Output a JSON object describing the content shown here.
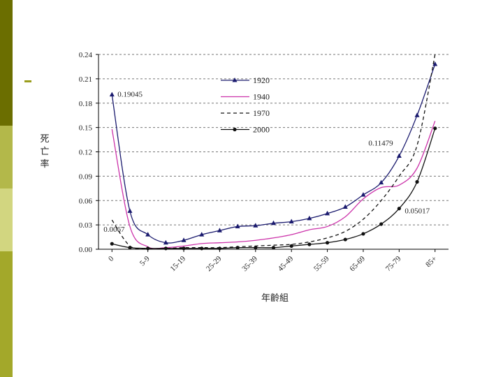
{
  "slide": {
    "sidebar_colors": [
      "#6b6e00",
      "#b3b84a",
      "#d2d680",
      "#a3a82a"
    ],
    "dash_color": "#9a9d1c"
  },
  "chart_data": {
    "type": "line",
    "ylabel": "死亡率",
    "xlabel": "年齡組",
    "ylim": [
      0,
      0.24
    ],
    "yticks": [
      "0.00",
      "0.03",
      "0.06",
      "0.09",
      "0.12",
      "0.15",
      "0.18",
      "0.21",
      "0.24"
    ],
    "grid": "horizontal dashed",
    "legend_position": "top-center",
    "x_tick_labels": [
      {
        "label": "0",
        "index": 0
      },
      {
        "label": "5-9",
        "index": 2
      },
      {
        "label": "15-19",
        "index": 4
      },
      {
        "label": "25-29",
        "index": 6
      },
      {
        "label": "35-39",
        "index": 8
      },
      {
        "label": "45-49",
        "index": 10
      },
      {
        "label": "55-59",
        "index": 12
      },
      {
        "label": "65-69",
        "index": 14
      },
      {
        "label": "75-79",
        "index": 16
      },
      {
        "label": "85+",
        "index": 18
      }
    ],
    "series": [
      {
        "name": "1920",
        "color": "#1a1a6e",
        "style": "solid",
        "marker": "triangle",
        "values": [
          0.19045,
          0.047,
          0.018,
          0.008,
          0.011,
          0.018,
          0.023,
          0.028,
          0.029,
          0.032,
          0.034,
          0.038,
          0.044,
          0.052,
          0.067,
          0.082,
          0.11479,
          0.165,
          0.228
        ]
      },
      {
        "name": "1940",
        "color": "#cc33aa",
        "style": "solid",
        "marker": "none",
        "values": [
          0.148,
          0.028,
          0.003,
          0.002,
          0.004,
          0.007,
          0.008,
          0.009,
          0.011,
          0.014,
          0.018,
          0.024,
          0.028,
          0.04,
          0.062,
          0.076,
          0.079,
          0.1,
          0.158
        ]
      },
      {
        "name": "1970",
        "color": "#111111",
        "style": "dashed",
        "marker": "none",
        "values": [
          0.036,
          0.004,
          0.001,
          0.001,
          0.002,
          0.002,
          0.002,
          0.003,
          0.004,
          0.005,
          0.006,
          0.009,
          0.014,
          0.022,
          0.037,
          0.06,
          0.09,
          0.128,
          0.24
        ]
      },
      {
        "name": "2000",
        "color": "#111111",
        "style": "solid",
        "marker": "circle",
        "values": [
          0.0067,
          0.002,
          0.001,
          0.001,
          0.001,
          0.001,
          0.001,
          0.002,
          0.002,
          0.002,
          0.004,
          0.006,
          0.008,
          0.012,
          0.019,
          0.031,
          0.05017,
          0.083,
          0.149
        ]
      }
    ],
    "annotations": [
      {
        "text": "0.19045",
        "series": 0,
        "index": 0
      },
      {
        "text": "0.0067",
        "series": 3,
        "index": 0
      },
      {
        "text": "0.11479",
        "series": 0,
        "index": 16
      },
      {
        "text": "0.05017",
        "series": 3,
        "index": 16
      }
    ]
  }
}
